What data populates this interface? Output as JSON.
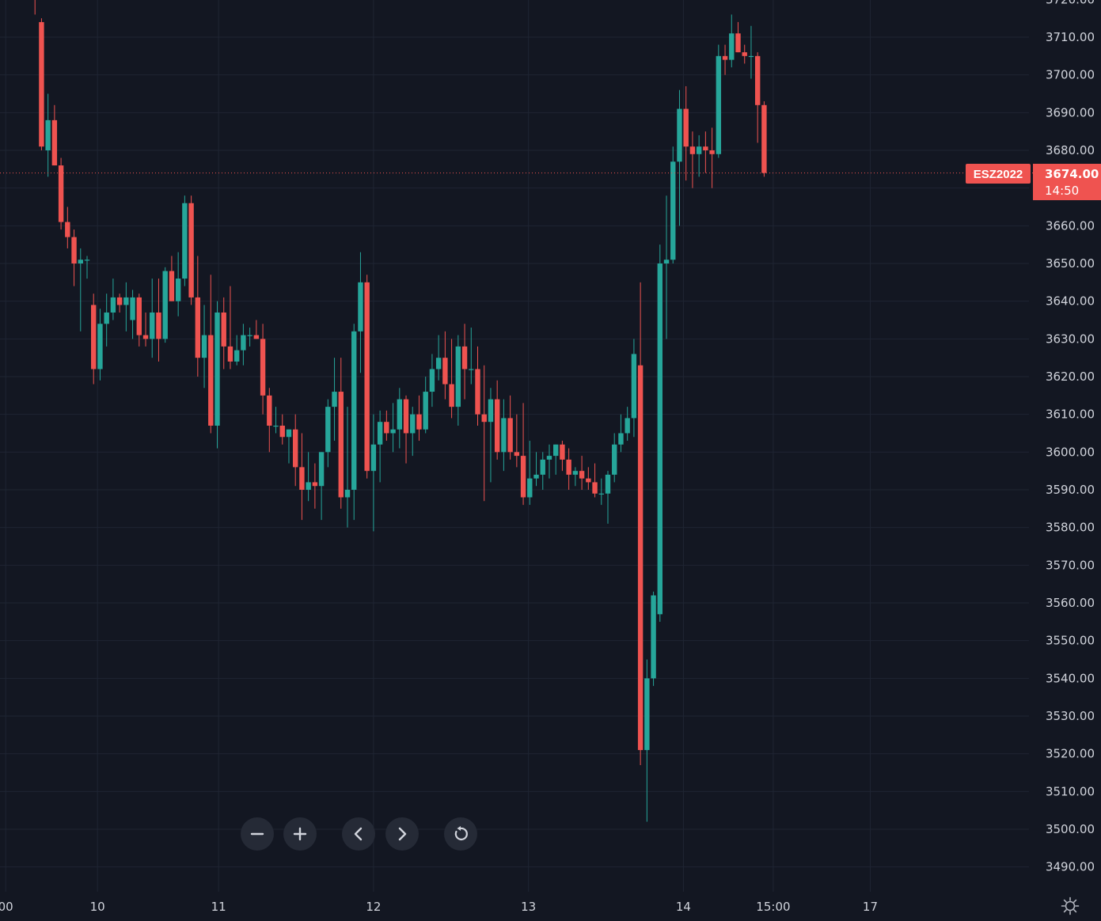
{
  "colors": {
    "background": "#131722",
    "grid": "#1f2533",
    "up": "#26a69a",
    "down": "#ef5350",
    "text": "#d1d4dc",
    "price_line": "#ef5350"
  },
  "icons": {
    "zoom_out": "minus-icon",
    "zoom_in": "plus-icon",
    "scroll_left": "chevron-left-icon",
    "scroll_right": "chevron-right-icon",
    "reset": "reset-icon",
    "settings": "gear-icon"
  },
  "chart_data": {
    "type": "candlestick",
    "title": "",
    "ylim": [
      3485,
      3722
    ],
    "grid": true,
    "y_ticks": [
      3720,
      3710,
      3700,
      3690,
      3680,
      3670,
      3660,
      3650,
      3640,
      3630,
      3620,
      3610,
      3600,
      3590,
      3580,
      3570,
      3560,
      3550,
      3540,
      3530,
      3520,
      3510,
      3500,
      3490
    ],
    "y_tick_labels": [
      "3720.00",
      "3710.00",
      "3700.00",
      "3690.00",
      "3680.00",
      "3670.00",
      "3660.00",
      "3650.00",
      "3640.00",
      "3630.00",
      "3620.00",
      "3610.00",
      "3600.00",
      "3590.00",
      "3580.00",
      "3570.00",
      "3560.00",
      "3550.00",
      "3540.00",
      "3530.00",
      "3520.00",
      "3510.00",
      "3500.00",
      "3490.00"
    ],
    "x_ticks": [
      {
        "label": "00",
        "bar": -4.5
      },
      {
        "label": "10",
        "bar": 9.6
      },
      {
        "label": "11",
        "bar": 28.2
      },
      {
        "label": "12",
        "bar": 52
      },
      {
        "label": "13",
        "bar": 75.8
      },
      {
        "label": "14",
        "bar": 99.6
      },
      {
        "label": "15:00",
        "bar": 113.4
      },
      {
        "label": "17",
        "bar": 128.3
      }
    ],
    "last_price": {
      "symbol": "ESZ2022",
      "price": 3674,
      "price_label": "3674.00",
      "countdown": "14:50"
    },
    "candles": [
      [
        3725,
        3730,
        3716,
        3720
      ],
      [
        3714,
        3715,
        3680,
        3681
      ],
      [
        3680,
        3695,
        3673,
        3688
      ],
      [
        3688,
        3692,
        3676,
        3676
      ],
      [
        3676,
        3678,
        3659,
        3661
      ],
      [
        3661,
        3665,
        3654,
        3657
      ],
      [
        3657,
        3659,
        3644,
        3650
      ],
      [
        3650,
        3654,
        3632,
        3651
      ],
      [
        3651,
        3652,
        3646,
        3651
      ],
      [
        3639,
        3642,
        3618,
        3622
      ],
      [
        3622,
        3638,
        3619,
        3634
      ],
      [
        3634,
        3642,
        3628,
        3637
      ],
      [
        3637,
        3646,
        3635,
        3641
      ],
      [
        3641,
        3642,
        3637,
        3639
      ],
      [
        3639,
        3645,
        3632,
        3641
      ],
      [
        3635,
        3643,
        3630,
        3641
      ],
      [
        3641,
        3642,
        3628,
        3631
      ],
      [
        3631,
        3637,
        3628,
        3630
      ],
      [
        3630,
        3646,
        3625,
        3637
      ],
      [
        3637,
        3646,
        3624,
        3630
      ],
      [
        3630,
        3649,
        3629,
        3648
      ],
      [
        3648,
        3652,
        3640,
        3640
      ],
      [
        3640,
        3653,
        3636,
        3646
      ],
      [
        3646,
        3668,
        3644,
        3666
      ],
      [
        3666,
        3668,
        3639,
        3641
      ],
      [
        3641,
        3652,
        3620,
        3625
      ],
      [
        3625,
        3639,
        3617,
        3631
      ],
      [
        3631,
        3647,
        3605,
        3607
      ],
      [
        3607,
        3640,
        3601,
        3637
      ],
      [
        3637,
        3641,
        3622,
        3628
      ],
      [
        3628,
        3644,
        3622,
        3624
      ],
      [
        3624,
        3631,
        3623,
        3627
      ],
      [
        3627,
        3634,
        3623,
        3631
      ],
      [
        3631,
        3633,
        3628,
        3631
      ],
      [
        3631,
        3635,
        3630,
        3630
      ],
      [
        3630,
        3634,
        3610,
        3615
      ],
      [
        3615,
        3617,
        3600,
        3607
      ],
      [
        3607,
        3612,
        3605,
        3607
      ],
      [
        3607,
        3610,
        3602,
        3604
      ],
      [
        3604,
        3606,
        3597,
        3606
      ],
      [
        3606,
        3610,
        3591,
        3596
      ],
      [
        3596,
        3605,
        3582,
        3590
      ],
      [
        3590,
        3600,
        3587,
        3592
      ],
      [
        3592,
        3597,
        3585,
        3591
      ],
      [
        3591,
        3600,
        3582,
        3600
      ],
      [
        3600,
        3614,
        3596,
        3612
      ],
      [
        3612,
        3625,
        3603,
        3616
      ],
      [
        3616,
        3625,
        3585,
        3588
      ],
      [
        3588,
        3612,
        3580,
        3590
      ],
      [
        3590,
        3634,
        3582,
        3632
      ],
      [
        3632,
        3653,
        3621,
        3645
      ],
      [
        3645,
        3647,
        3593,
        3595
      ],
      [
        3595,
        3610,
        3579,
        3602
      ],
      [
        3602,
        3611,
        3592,
        3608
      ],
      [
        3608,
        3611,
        3603,
        3605
      ],
      [
        3605,
        3613,
        3600,
        3606
      ],
      [
        3606,
        3617,
        3601,
        3614
      ],
      [
        3614,
        3615,
        3597,
        3605
      ],
      [
        3605,
        3612,
        3599,
        3610
      ],
      [
        3610,
        3615,
        3603,
        3606
      ],
      [
        3606,
        3620,
        3605,
        3616
      ],
      [
        3616,
        3626,
        3612,
        3622
      ],
      [
        3622,
        3631,
        3619,
        3625
      ],
      [
        3625,
        3632,
        3614,
        3618
      ],
      [
        3618,
        3630,
        3609,
        3612
      ],
      [
        3612,
        3631,
        3607,
        3628
      ],
      [
        3628,
        3634,
        3614,
        3622
      ],
      [
        3622,
        3633,
        3618,
        3622
      ],
      [
        3622,
        3628,
        3607,
        3610
      ],
      [
        3610,
        3623,
        3587,
        3608
      ],
      [
        3608,
        3617,
        3592,
        3614
      ],
      [
        3614,
        3619,
        3598,
        3600
      ],
      [
        3600,
        3614,
        3595,
        3609
      ],
      [
        3609,
        3615,
        3598,
        3600
      ],
      [
        3600,
        3610,
        3596,
        3599
      ],
      [
        3599,
        3613,
        3586,
        3588
      ],
      [
        3588,
        3603,
        3586,
        3593
      ],
      [
        3593,
        3600,
        3591,
        3594
      ],
      [
        3594,
        3600,
        3590,
        3598
      ],
      [
        3598,
        3602,
        3593,
        3599
      ],
      [
        3599,
        3602,
        3594,
        3602
      ],
      [
        3602,
        3603,
        3595,
        3598
      ],
      [
        3598,
        3601,
        3590,
        3594
      ],
      [
        3594,
        3596,
        3591,
        3595
      ],
      [
        3595,
        3599,
        3590,
        3593
      ],
      [
        3593,
        3596,
        3590,
        3592
      ],
      [
        3592,
        3597,
        3588,
        3589
      ],
      [
        3589,
        3593,
        3586,
        3589
      ],
      [
        3589,
        3595,
        3581,
        3594
      ],
      [
        3594,
        3605,
        3592,
        3602
      ],
      [
        3602,
        3610,
        3600,
        3605
      ],
      [
        3605,
        3612,
        3603,
        3609
      ],
      [
        3609,
        3630,
        3604,
        3626
      ],
      [
        3623,
        3645,
        3517,
        3521
      ],
      [
        3521,
        3545,
        3502,
        3540
      ],
      [
        3540,
        3563,
        3538,
        3562
      ],
      [
        3557,
        3655,
        3555,
        3650
      ],
      [
        3650,
        3668,
        3630,
        3651
      ],
      [
        3651,
        3681,
        3650,
        3677
      ],
      [
        3677,
        3696,
        3660,
        3691
      ],
      [
        3691,
        3697,
        3672,
        3681
      ],
      [
        3681,
        3685,
        3670,
        3679
      ],
      [
        3679,
        3684,
        3673,
        3681
      ],
      [
        3681,
        3685,
        3674,
        3680
      ],
      [
        3680,
        3686,
        3670,
        3679
      ],
      [
        3679,
        3708,
        3678,
        3705
      ],
      [
        3705,
        3708,
        3700,
        3704
      ],
      [
        3704,
        3716,
        3702,
        3711
      ],
      [
        3711,
        3714,
        3706,
        3706
      ],
      [
        3706,
        3708,
        3703,
        3705
      ],
      [
        3705,
        3713,
        3699,
        3705
      ],
      [
        3705,
        3706,
        3682,
        3692
      ],
      [
        3692,
        3693,
        3673,
        3674
      ]
    ]
  }
}
